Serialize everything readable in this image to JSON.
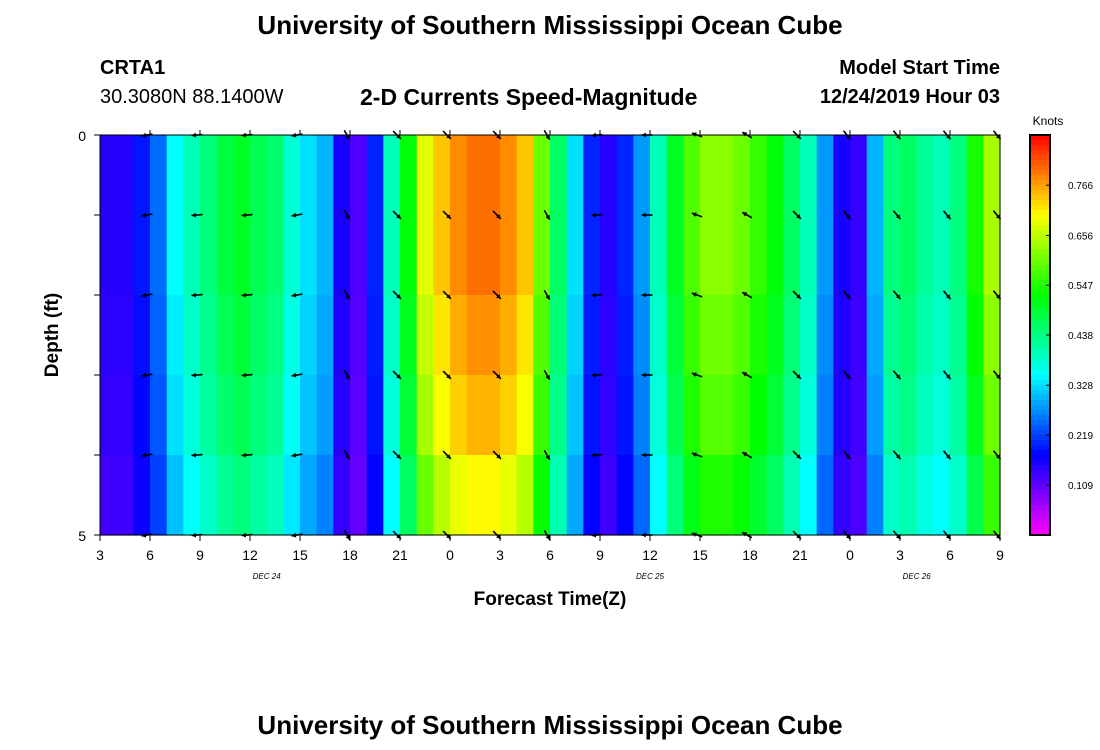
{
  "header": {
    "title": "University of Southern Mississippi Ocean Cube",
    "station": "CRTA1",
    "coords": "30.3080N 88.1400W",
    "chart_title": "2-D Currents Speed-Magnitude",
    "model_label": "Model Start Time",
    "model_time": "12/24/2019 Hour 03"
  },
  "footer": {
    "title": "University of Southern Mississippi Ocean Cube"
  },
  "chart_data": {
    "type": "heatmap",
    "title": "2-D Currents Speed-Magnitude",
    "xlabel": "Forecast Time(Z)",
    "ylabel": "Depth (ft)",
    "ylim": [
      0,
      5
    ],
    "y_ticks": [
      "0",
      "5"
    ],
    "x_tick_labels": [
      "3",
      "6",
      "9",
      "12",
      "15",
      "18",
      "21",
      "0",
      "3",
      "6",
      "9",
      "12",
      "15",
      "18",
      "21",
      "0",
      "3",
      "6",
      "9"
    ],
    "date_labels": [
      {
        "text": "DEC 24",
        "hour_index": 10
      },
      {
        "text": "DEC 25",
        "hour_index": 33
      },
      {
        "text": "DEC 26",
        "hour_index": 49
      }
    ],
    "colorbar": {
      "unit": "Knots",
      "min": 0.0,
      "max": 0.876,
      "tick_values": [
        0.109,
        0.219,
        0.328,
        0.438,
        0.547,
        0.656,
        0.766
      ],
      "tick_labels": [
        "0.109",
        "0.219",
        "0.328",
        "0.438",
        "0.547",
        "0.656",
        "0.766"
      ]
    },
    "hours": 54,
    "depth_layers": 5,
    "speed_profile_knots": [
      0.15,
      0.15,
      0.19,
      0.25,
      0.35,
      0.4,
      0.44,
      0.48,
      0.5,
      0.47,
      0.45,
      0.38,
      0.33,
      0.3,
      0.16,
      0.12,
      0.2,
      0.4,
      0.52,
      0.68,
      0.74,
      0.78,
      0.8,
      0.8,
      0.78,
      0.74,
      0.6,
      0.46,
      0.33,
      0.2,
      0.15,
      0.2,
      0.28,
      0.4,
      0.5,
      0.58,
      0.62,
      0.62,
      0.6,
      0.56,
      0.52,
      0.46,
      0.4,
      0.28,
      0.16,
      0.14,
      0.3,
      0.44,
      0.46,
      0.42,
      0.4,
      0.44,
      0.54,
      0.64
    ],
    "depth_factor": [
      1.0,
      1.0,
      0.97,
      0.94,
      0.88
    ],
    "vectors": {
      "hour_indices": [
        3,
        6,
        9,
        12,
        15,
        18,
        21,
        24,
        27,
        30,
        33,
        36,
        39,
        42,
        45,
        48,
        51,
        54
      ],
      "depth_rows": [
        0,
        1,
        2,
        3,
        4,
        5
      ],
      "headings_deg": [
        260,
        265,
        265,
        260,
        150,
        135,
        135,
        135,
        150,
        265,
        270,
        290,
        300,
        135,
        140,
        140,
        140,
        140
      ]
    }
  }
}
